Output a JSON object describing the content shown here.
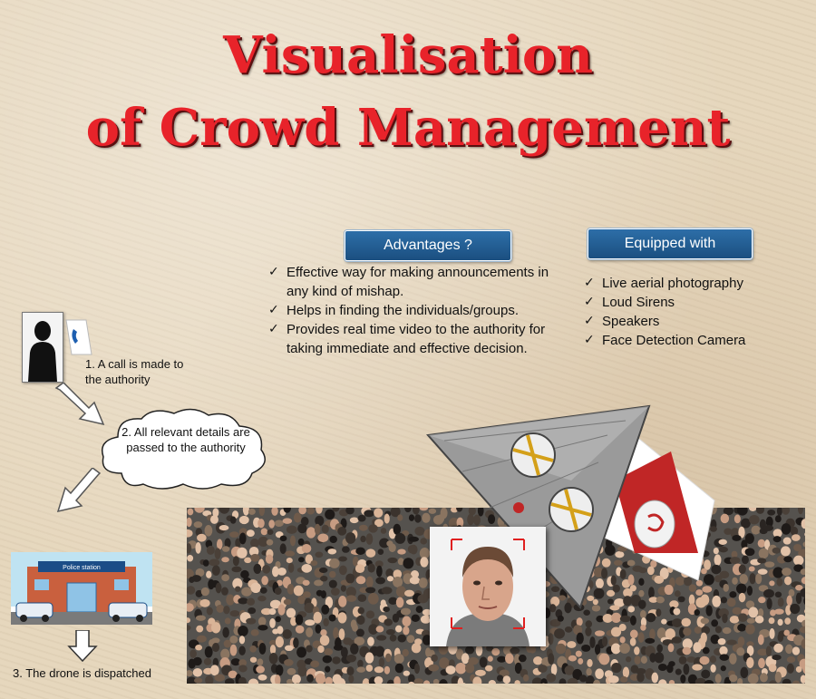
{
  "title": {
    "line1": "Visualisation",
    "line2": "of Crowd Management"
  },
  "advantages": {
    "heading": "Advantages ?",
    "items": [
      "Effective way for making announcements in any kind of mishap.",
      "Helps in finding the  individuals/groups.",
      "Provides real time video to the authority for taking immediate  and effective decision."
    ]
  },
  "equipped": {
    "heading": "Equipped with",
    "items": [
      "Live aerial photography",
      "Loud Sirens",
      "Speakers",
      "Face Detection Camera"
    ]
  },
  "steps": {
    "step1": "1. A call is made to the authority",
    "step2": "2. All relevant details are passed to the authority",
    "step3": "3. The drone is dispatched"
  },
  "police_sign": "Police station",
  "check_glyph": "✓",
  "colors": {
    "title_red": "#e8232a",
    "pill_blue": "#1f5d94",
    "background": "#e6d7bd"
  }
}
